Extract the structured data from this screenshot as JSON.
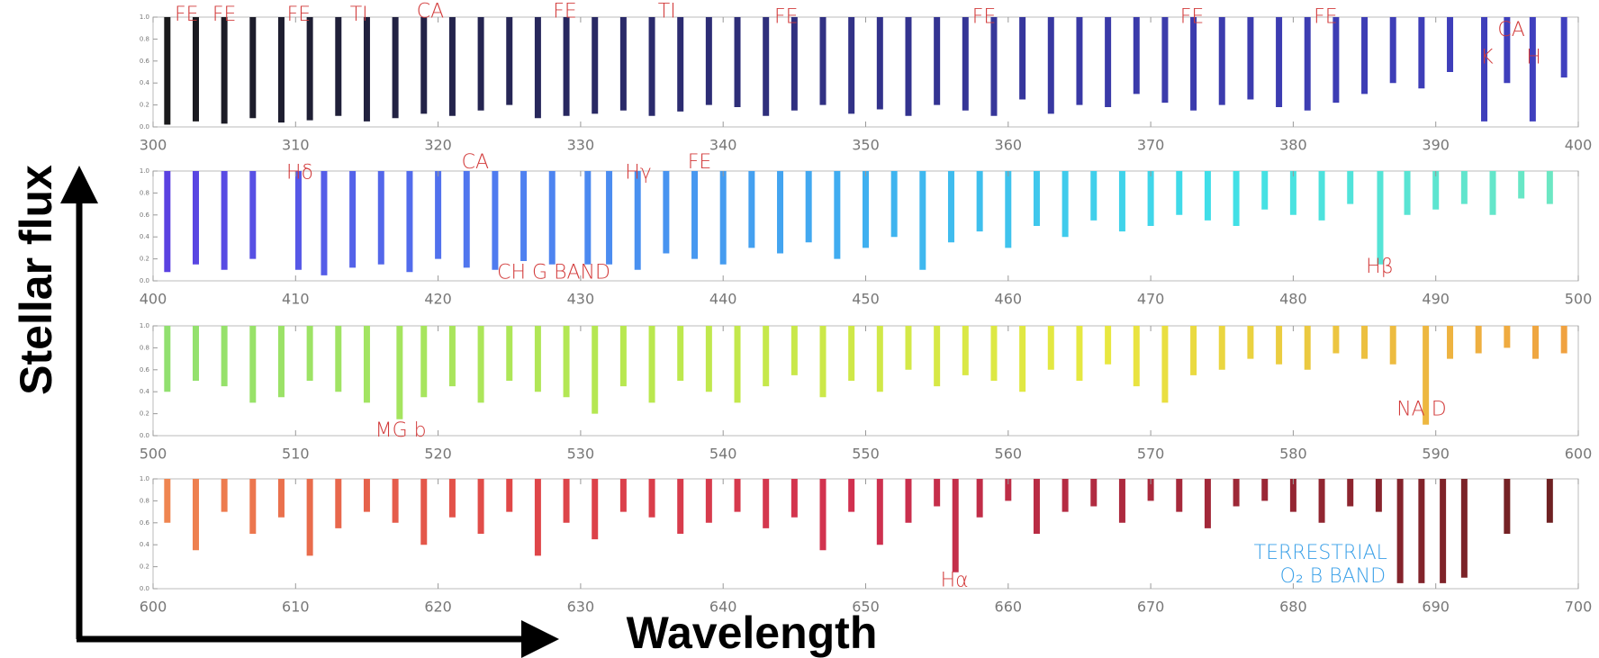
{
  "y_label": "Stellar flux",
  "x_label": "Wavelength",
  "chart_data": [
    {
      "type": "spectrum",
      "x": [
        301,
        303,
        305,
        307,
        309,
        311,
        313,
        315,
        317,
        319,
        321,
        323,
        325,
        327,
        329,
        331,
        333,
        335,
        337,
        339,
        341,
        343,
        345,
        347,
        349,
        351,
        353,
        355,
        357,
        359,
        361,
        363,
        365,
        367,
        369,
        371,
        373,
        375,
        377,
        379,
        381,
        383,
        385,
        387,
        389,
        391,
        393.4,
        395,
        396.8,
        399
      ],
      "values": [
        0.02,
        0.05,
        0.03,
        0.08,
        0.04,
        0.06,
        0.1,
        0.05,
        0.08,
        0.12,
        0.1,
        0.15,
        0.2,
        0.08,
        0.1,
        0.12,
        0.15,
        0.1,
        0.14,
        0.2,
        0.18,
        0.1,
        0.15,
        0.2,
        0.12,
        0.16,
        0.1,
        0.2,
        0.15,
        0.1,
        0.25,
        0.12,
        0.2,
        0.18,
        0.3,
        0.22,
        0.15,
        0.2,
        0.25,
        0.18,
        0.15,
        0.22,
        0.3,
        0.4,
        0.35,
        0.5,
        0.05,
        0.4,
        0.05,
        0.45
      ],
      "colors": [
        "#1a1a1a",
        "#2a2a6a",
        "#3a3aa8",
        "#4040c0"
      ],
      "xlim": [
        300,
        400
      ],
      "xticks": [
        300,
        310,
        320,
        330,
        340,
        350,
        360,
        370,
        380,
        390,
        400
      ],
      "ylim": [
        0,
        1
      ],
      "yticks": [
        {
          "value": 0,
          "label": "0.0"
        },
        0.2,
        0.4,
        0.6,
        0.8,
        {
          "value": 1,
          "label": "1.0"
        }
      ],
      "annotations": [
        "FE",
        "FE",
        "FE",
        "TI",
        "CA",
        "FE",
        "TI",
        "FE",
        "FE",
        "FE",
        "FE",
        "CA",
        "K",
        "H"
      ]
    },
    {
      "type": "spectrum",
      "x": [
        401,
        403,
        405,
        407,
        410.2,
        412,
        414,
        416,
        418,
        420,
        422,
        424,
        426,
        428,
        430.5,
        432,
        434,
        436,
        438,
        440,
        442,
        444,
        446,
        448,
        450,
        452,
        454,
        456,
        458,
        460,
        462,
        464,
        466,
        468,
        470,
        472,
        474,
        476,
        478,
        480,
        482,
        484,
        486.1,
        488,
        490,
        492,
        494,
        496,
        498
      ],
      "values": [
        0.08,
        0.15,
        0.1,
        0.2,
        0.1,
        0.05,
        0.12,
        0.15,
        0.08,
        0.2,
        0.12,
        0.1,
        0.18,
        0.15,
        0.15,
        0.15,
        0.1,
        0.25,
        0.2,
        0.15,
        0.3,
        0.25,
        0.35,
        0.2,
        0.3,
        0.4,
        0.1,
        0.35,
        0.45,
        0.3,
        0.5,
        0.4,
        0.55,
        0.45,
        0.5,
        0.6,
        0.55,
        0.5,
        0.65,
        0.6,
        0.55,
        0.7,
        0.15,
        0.6,
        0.65,
        0.7,
        0.6,
        0.75,
        0.7
      ],
      "colors": [
        "#5a3ee0",
        "#4f7ef0",
        "#3fb0f0",
        "#40e0e8",
        "#70e8c0"
      ],
      "xlim": [
        400,
        500
      ],
      "xticks": [
        400,
        410,
        420,
        430,
        440,
        450,
        460,
        470,
        480,
        490,
        500
      ],
      "ylim": [
        0,
        1
      ],
      "yticks": [
        {
          "value": 0,
          "label": "0.0"
        },
        0.2,
        0.4,
        0.6,
        0.8,
        {
          "value": 1,
          "label": "1.0"
        }
      ],
      "annotations": [
        "Hδ",
        "CA",
        "Hγ",
        "FE",
        "CH G BAND",
        "Hβ"
      ]
    },
    {
      "type": "spectrum",
      "x": [
        501,
        503,
        505,
        507,
        509,
        511,
        513,
        515,
        517.3,
        519,
        521,
        523,
        525,
        527,
        529,
        531,
        533,
        535,
        537,
        539,
        541,
        543,
        545,
        547,
        549,
        551,
        553,
        555,
        557,
        559,
        561,
        563,
        565,
        567,
        569,
        571,
        573,
        575,
        577,
        579,
        581,
        583,
        585,
        587,
        589.3,
        591,
        593,
        595,
        597,
        599
      ],
      "values": [
        0.4,
        0.5,
        0.45,
        0.3,
        0.35,
        0.5,
        0.4,
        0.3,
        0.15,
        0.35,
        0.45,
        0.3,
        0.5,
        0.4,
        0.35,
        0.2,
        0.45,
        0.3,
        0.5,
        0.4,
        0.3,
        0.45,
        0.55,
        0.35,
        0.5,
        0.4,
        0.6,
        0.45,
        0.55,
        0.5,
        0.4,
        0.6,
        0.5,
        0.65,
        0.45,
        0.3,
        0.55,
        0.6,
        0.7,
        0.65,
        0.6,
        0.75,
        0.7,
        0.65,
        0.1,
        0.7,
        0.75,
        0.8,
        0.7,
        0.75
      ],
      "colors": [
        "#90e070",
        "#b8e850",
        "#e8e840",
        "#f0a040"
      ],
      "xlim": [
        500,
        600
      ],
      "xticks": [
        500,
        510,
        520,
        530,
        540,
        550,
        560,
        570,
        580,
        590,
        600
      ],
      "ylim": [
        0,
        1
      ],
      "yticks": [
        {
          "value": 0,
          "label": "0.0"
        },
        0.2,
        0.4,
        0.6,
        0.8,
        {
          "value": 1,
          "label": "1.0"
        }
      ],
      "annotations": [
        "MG b",
        "NA D"
      ]
    },
    {
      "type": "spectrum",
      "x": [
        601,
        603,
        605,
        607,
        609,
        611,
        613,
        615,
        617,
        619,
        621,
        623,
        625,
        627,
        629,
        631,
        633,
        635,
        637,
        639,
        641,
        643,
        645,
        647,
        649,
        651,
        653,
        655,
        656.3,
        658,
        660,
        662,
        664,
        666,
        668,
        670,
        672,
        674,
        676,
        678,
        680,
        682,
        684,
        686,
        687.5,
        689,
        690.5,
        692,
        695,
        698
      ],
      "values": [
        0.6,
        0.35,
        0.7,
        0.5,
        0.65,
        0.3,
        0.55,
        0.7,
        0.6,
        0.4,
        0.65,
        0.5,
        0.7,
        0.3,
        0.6,
        0.45,
        0.7,
        0.65,
        0.5,
        0.6,
        0.7,
        0.55,
        0.65,
        0.35,
        0.7,
        0.4,
        0.6,
        0.75,
        0.15,
        0.65,
        0.8,
        0.5,
        0.7,
        0.75,
        0.6,
        0.8,
        0.7,
        0.55,
        0.75,
        0.8,
        0.7,
        0.6,
        0.75,
        0.7,
        0.05,
        0.05,
        0.05,
        0.1,
        0.5,
        0.6
      ],
      "colors": [
        "#f08850",
        "#e04848",
        "#d03050",
        "#a02838",
        "#6a2020"
      ],
      "xlim": [
        600,
        700
      ],
      "xticks": [
        600,
        610,
        620,
        630,
        640,
        650,
        660,
        670,
        680,
        690,
        700
      ],
      "ylim": [
        0,
        1
      ],
      "yticks": [
        {
          "value": 0,
          "label": "0.0"
        },
        0.2,
        0.4,
        0.6,
        0.8,
        {
          "value": 1,
          "label": "1.0"
        }
      ],
      "annotations": [
        "Hα",
        "TERRESTRIAL",
        "O₂ B BAND"
      ]
    }
  ]
}
